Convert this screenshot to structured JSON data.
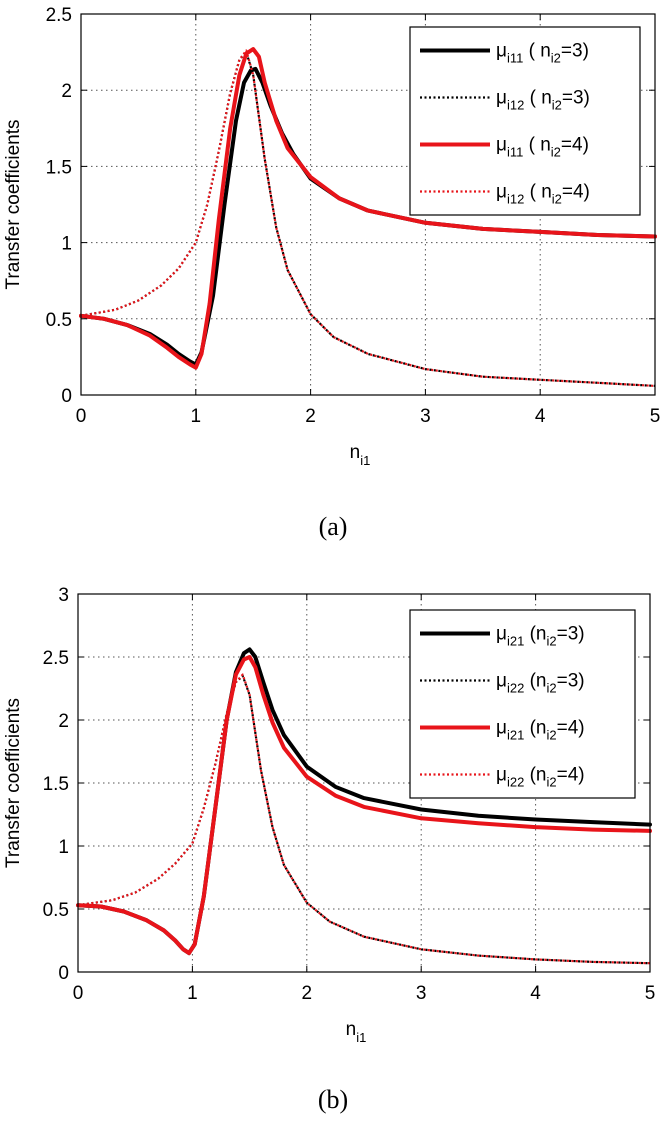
{
  "figure": {
    "panels": [
      {
        "caption": "(a)"
      },
      {
        "caption": "(b)"
      }
    ]
  },
  "colors": {
    "black": "#000000",
    "red": "#e8141a",
    "grid": "#555555"
  },
  "chart_data": [
    {
      "type": "line",
      "panel": "a",
      "xlabel": {
        "main": "n",
        "sub": "i1"
      },
      "ylabel": "Transfer coefficients",
      "xlim": [
        0,
        5
      ],
      "ylim": [
        0,
        2.5
      ],
      "xticks": [
        0,
        1,
        2,
        3,
        4,
        5
      ],
      "yticks": [
        0,
        0.5,
        1,
        1.5,
        2,
        2.5
      ],
      "grid": true,
      "legend_position": "top-right",
      "series": [
        {
          "name": "μi11 (ni2=3)",
          "legend": {
            "mu": "μ",
            "sub": "i11",
            "open": " ( n",
            "sub2": "i2",
            "close": "=3)"
          },
          "color": "black",
          "style": "solid",
          "x": [
            0,
            0.2,
            0.4,
            0.6,
            0.75,
            0.85,
            0.95,
            1.0,
            1.05,
            1.15,
            1.25,
            1.35,
            1.42,
            1.48,
            1.52,
            1.58,
            1.65,
            1.75,
            1.85,
            2.0,
            2.25,
            2.5,
            3.0,
            3.5,
            4.0,
            4.5,
            5.0
          ],
          "y": [
            0.52,
            0.5,
            0.46,
            0.4,
            0.33,
            0.27,
            0.22,
            0.2,
            0.28,
            0.65,
            1.25,
            1.8,
            2.05,
            2.13,
            2.14,
            2.05,
            1.9,
            1.72,
            1.58,
            1.42,
            1.29,
            1.21,
            1.13,
            1.09,
            1.07,
            1.05,
            1.04
          ]
        },
        {
          "name": "μi12 (ni2=3)",
          "legend": {
            "mu": "μ",
            "sub": "i12",
            "open": " ( n",
            "sub2": "i2",
            "close": "=3)"
          },
          "color": "black",
          "style": "dotted",
          "x": [
            0,
            0.3,
            0.5,
            0.7,
            0.85,
            1.0,
            1.1,
            1.2,
            1.3,
            1.38,
            1.44,
            1.5,
            1.6,
            1.7,
            1.8,
            2.0,
            2.2,
            2.5,
            3.0,
            3.5,
            4.0,
            4.5,
            5.0
          ],
          "y": [
            0.52,
            0.56,
            0.62,
            0.72,
            0.83,
            1.0,
            1.25,
            1.6,
            1.98,
            2.2,
            2.25,
            2.1,
            1.55,
            1.1,
            0.82,
            0.53,
            0.38,
            0.27,
            0.17,
            0.12,
            0.1,
            0.08,
            0.06
          ]
        },
        {
          "name": "μi11 (ni2=4)",
          "legend": {
            "mu": "μ",
            "sub": "i11",
            "open": " ( n",
            "sub2": "i2",
            "close": "=4)"
          },
          "color": "red",
          "style": "solid",
          "x": [
            0,
            0.2,
            0.4,
            0.6,
            0.75,
            0.85,
            0.95,
            1.0,
            1.05,
            1.12,
            1.2,
            1.3,
            1.38,
            1.44,
            1.5,
            1.55,
            1.6,
            1.7,
            1.8,
            2.0,
            2.25,
            2.5,
            3.0,
            3.5,
            4.0,
            4.5,
            5.0
          ],
          "y": [
            0.52,
            0.5,
            0.46,
            0.39,
            0.31,
            0.25,
            0.2,
            0.18,
            0.27,
            0.6,
            1.15,
            1.75,
            2.1,
            2.24,
            2.27,
            2.22,
            2.05,
            1.8,
            1.62,
            1.43,
            1.29,
            1.21,
            1.13,
            1.09,
            1.07,
            1.05,
            1.04
          ]
        },
        {
          "name": "μi12 (ni2=4)",
          "legend": {
            "mu": "μ",
            "sub": "i12",
            "open": " ( n",
            "sub2": "i2",
            "close": "=4)"
          },
          "color": "red",
          "style": "dotted",
          "x": [
            0,
            0.3,
            0.5,
            0.7,
            0.85,
            1.0,
            1.1,
            1.2,
            1.3,
            1.38,
            1.44,
            1.5,
            1.6,
            1.7,
            1.8,
            2.0,
            2.2,
            2.5,
            3.0,
            3.5,
            4.0,
            4.5,
            5.0
          ],
          "y": [
            0.52,
            0.56,
            0.62,
            0.72,
            0.83,
            1.0,
            1.25,
            1.6,
            1.98,
            2.2,
            2.26,
            2.1,
            1.55,
            1.1,
            0.82,
            0.53,
            0.38,
            0.27,
            0.17,
            0.12,
            0.1,
            0.08,
            0.06
          ]
        }
      ]
    },
    {
      "type": "line",
      "panel": "b",
      "xlabel": {
        "main": "n",
        "sub": "i1"
      },
      "ylabel": "Transfer coefficients",
      "xlim": [
        0,
        5
      ],
      "ylim": [
        0,
        3
      ],
      "xticks": [
        0,
        1,
        2,
        3,
        4,
        5
      ],
      "yticks": [
        0,
        0.5,
        1,
        1.5,
        2,
        2.5,
        3
      ],
      "grid": true,
      "legend_position": "top-right",
      "series": [
        {
          "name": "μi21 (ni2=3)",
          "legend": {
            "mu": "μ",
            "sub": "i21",
            "open": " (n",
            "sub2": "i2",
            "close": "=3)"
          },
          "color": "black",
          "style": "solid",
          "x": [
            0,
            0.2,
            0.4,
            0.6,
            0.75,
            0.85,
            0.92,
            0.97,
            1.02,
            1.1,
            1.2,
            1.3,
            1.38,
            1.45,
            1.5,
            1.55,
            1.62,
            1.7,
            1.8,
            2.0,
            2.25,
            2.5,
            3.0,
            3.5,
            4.0,
            4.5,
            5.0
          ],
          "y": [
            0.53,
            0.52,
            0.48,
            0.41,
            0.33,
            0.25,
            0.18,
            0.15,
            0.22,
            0.6,
            1.3,
            2.0,
            2.38,
            2.53,
            2.56,
            2.5,
            2.3,
            2.08,
            1.88,
            1.63,
            1.47,
            1.38,
            1.29,
            1.24,
            1.21,
            1.19,
            1.17
          ]
        },
        {
          "name": "μi22 (ni2=3)",
          "legend": {
            "mu": "μ",
            "sub": "i22",
            "open": " (n",
            "sub2": "i2",
            "close": "=3)"
          },
          "color": "black",
          "style": "dotted",
          "x": [
            0,
            0.3,
            0.5,
            0.7,
            0.85,
            1.0,
            1.1,
            1.2,
            1.3,
            1.38,
            1.44,
            1.5,
            1.6,
            1.7,
            1.8,
            2.0,
            2.2,
            2.5,
            3.0,
            3.5,
            4.0,
            4.5,
            5.0
          ],
          "y": [
            0.53,
            0.57,
            0.63,
            0.74,
            0.86,
            1.02,
            1.3,
            1.65,
            2.05,
            2.3,
            2.35,
            2.2,
            1.6,
            1.15,
            0.85,
            0.55,
            0.4,
            0.28,
            0.18,
            0.13,
            0.1,
            0.08,
            0.07
          ]
        },
        {
          "name": "μi21 (ni2=4)",
          "legend": {
            "mu": "μ",
            "sub": "i21",
            "open": " (n",
            "sub2": "i2",
            "close": "=4)"
          },
          "color": "red",
          "style": "solid",
          "x": [
            0,
            0.2,
            0.4,
            0.6,
            0.75,
            0.85,
            0.92,
            0.97,
            1.02,
            1.1,
            1.2,
            1.3,
            1.38,
            1.45,
            1.5,
            1.55,
            1.62,
            1.7,
            1.8,
            2.0,
            2.25,
            2.5,
            3.0,
            3.5,
            4.0,
            4.5,
            5.0
          ],
          "y": [
            0.53,
            0.52,
            0.48,
            0.41,
            0.33,
            0.25,
            0.18,
            0.15,
            0.22,
            0.6,
            1.3,
            2.0,
            2.36,
            2.48,
            2.5,
            2.42,
            2.2,
            1.98,
            1.78,
            1.55,
            1.4,
            1.31,
            1.22,
            1.18,
            1.15,
            1.13,
            1.12
          ]
        },
        {
          "name": "μi22 (ni2=4)",
          "legend": {
            "mu": "μ",
            "sub": "i22",
            "open": " (n",
            "sub2": "i2",
            "close": "=4)"
          },
          "color": "red",
          "style": "dotted",
          "x": [
            0,
            0.3,
            0.5,
            0.7,
            0.85,
            1.0,
            1.1,
            1.2,
            1.3,
            1.38,
            1.44,
            1.5,
            1.6,
            1.7,
            1.8,
            2.0,
            2.2,
            2.5,
            3.0,
            3.5,
            4.0,
            4.5,
            5.0
          ],
          "y": [
            0.53,
            0.57,
            0.63,
            0.74,
            0.86,
            1.02,
            1.3,
            1.65,
            2.05,
            2.3,
            2.36,
            2.2,
            1.6,
            1.15,
            0.85,
            0.55,
            0.4,
            0.28,
            0.18,
            0.13,
            0.1,
            0.08,
            0.07
          ]
        }
      ]
    }
  ]
}
